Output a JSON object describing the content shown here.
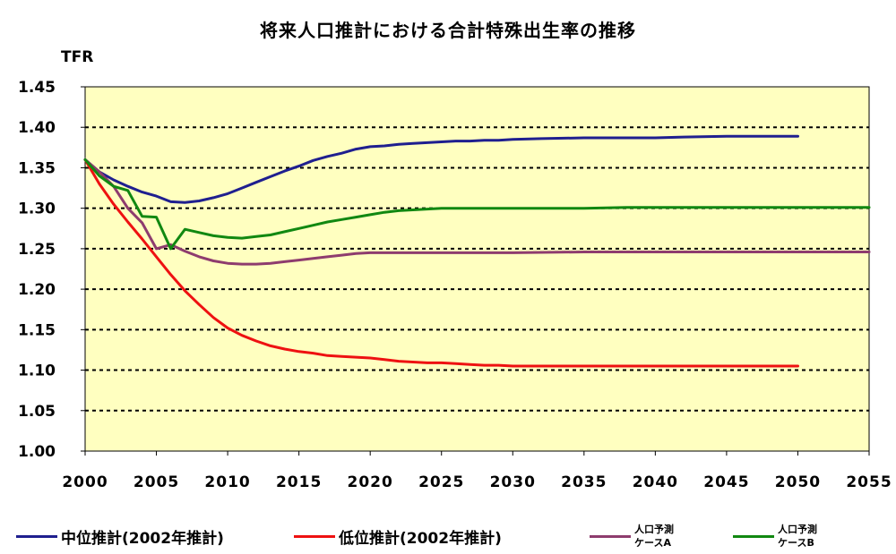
{
  "chart_data": {
    "type": "line",
    "title": "将来人口推計における合計特殊出生率の推移",
    "ylabel": "TFR",
    "xlabel": "",
    "xlim": [
      2000,
      2055
    ],
    "ylim": [
      1.0,
      1.45
    ],
    "x_ticks": [
      "2000",
      "2005",
      "2010",
      "2015",
      "2020",
      "2025",
      "2030",
      "2035",
      "2040",
      "2045",
      "2050",
      "2055"
    ],
    "y_ticks": [
      "1.00",
      "1.05",
      "1.10",
      "1.15",
      "1.20",
      "1.25",
      "1.30",
      "1.35",
      "1.40",
      "1.45"
    ],
    "grid": "horizontal dashed",
    "legend_position": "bottom",
    "plot_background": "#FFFFC0",
    "series": [
      {
        "name": "中位推計(2002年推計)",
        "color": "#1F1F8F",
        "points": [
          [
            2000,
            1.36
          ],
          [
            2001,
            1.345
          ],
          [
            2002,
            1.335
          ],
          [
            2003,
            1.327
          ],
          [
            2004,
            1.32
          ],
          [
            2005,
            1.315
          ],
          [
            2006,
            1.308
          ],
          [
            2007,
            1.307
          ],
          [
            2008,
            1.309
          ],
          [
            2009,
            1.313
          ],
          [
            2010,
            1.318
          ],
          [
            2011,
            1.325
          ],
          [
            2012,
            1.332
          ],
          [
            2013,
            1.339
          ],
          [
            2014,
            1.346
          ],
          [
            2015,
            1.352
          ],
          [
            2016,
            1.359
          ],
          [
            2017,
            1.364
          ],
          [
            2018,
            1.368
          ],
          [
            2019,
            1.373
          ],
          [
            2020,
            1.376
          ],
          [
            2021,
            1.377
          ],
          [
            2022,
            1.379
          ],
          [
            2023,
            1.38
          ],
          [
            2024,
            1.381
          ],
          [
            2025,
            1.382
          ],
          [
            2026,
            1.383
          ],
          [
            2027,
            1.383
          ],
          [
            2028,
            1.384
          ],
          [
            2029,
            1.384
          ],
          [
            2030,
            1.385
          ],
          [
            2032,
            1.386
          ],
          [
            2035,
            1.387
          ],
          [
            2040,
            1.387
          ],
          [
            2042,
            1.388
          ],
          [
            2045,
            1.389
          ],
          [
            2050,
            1.389
          ]
        ]
      },
      {
        "name": "低位推計(2002年推計)",
        "color": "#EE1111",
        "points": [
          [
            2000,
            1.36
          ],
          [
            2001,
            1.33
          ],
          [
            2002,
            1.305
          ],
          [
            2003,
            1.283
          ],
          [
            2004,
            1.262
          ],
          [
            2005,
            1.24
          ],
          [
            2006,
            1.218
          ],
          [
            2007,
            1.198
          ],
          [
            2008,
            1.181
          ],
          [
            2009,
            1.165
          ],
          [
            2010,
            1.152
          ],
          [
            2011,
            1.143
          ],
          [
            2012,
            1.136
          ],
          [
            2013,
            1.13
          ],
          [
            2014,
            1.126
          ],
          [
            2015,
            1.123
          ],
          [
            2016,
            1.121
          ],
          [
            2017,
            1.118
          ],
          [
            2018,
            1.117
          ],
          [
            2019,
            1.116
          ],
          [
            2020,
            1.115
          ],
          [
            2021,
            1.113
          ],
          [
            2022,
            1.111
          ],
          [
            2023,
            1.11
          ],
          [
            2024,
            1.109
          ],
          [
            2025,
            1.109
          ],
          [
            2026,
            1.108
          ],
          [
            2027,
            1.107
          ],
          [
            2028,
            1.106
          ],
          [
            2029,
            1.106
          ],
          [
            2030,
            1.105
          ],
          [
            2035,
            1.105
          ],
          [
            2040,
            1.105
          ],
          [
            2045,
            1.105
          ],
          [
            2050,
            1.105
          ]
        ]
      },
      {
        "name": "人口予測\nケースA",
        "color": "#8E3C6E",
        "points": [
          [
            2000,
            1.36
          ],
          [
            2001,
            1.345
          ],
          [
            2002,
            1.327
          ],
          [
            2003,
            1.3
          ],
          [
            2004,
            1.282
          ],
          [
            2005,
            1.25
          ],
          [
            2006,
            1.255
          ],
          [
            2007,
            1.247
          ],
          [
            2008,
            1.24
          ],
          [
            2009,
            1.235
          ],
          [
            2010,
            1.232
          ],
          [
            2011,
            1.231
          ],
          [
            2012,
            1.231
          ],
          [
            2013,
            1.232
          ],
          [
            2014,
            1.234
          ],
          [
            2015,
            1.236
          ],
          [
            2016,
            1.238
          ],
          [
            2017,
            1.24
          ],
          [
            2018,
            1.242
          ],
          [
            2019,
            1.244
          ],
          [
            2020,
            1.245
          ],
          [
            2022,
            1.245
          ],
          [
            2025,
            1.245
          ],
          [
            2030,
            1.245
          ],
          [
            2035,
            1.246
          ],
          [
            2040,
            1.246
          ],
          [
            2045,
            1.246
          ],
          [
            2050,
            1.246
          ],
          [
            2055,
            1.246
          ]
        ]
      },
      {
        "name": "人口予測\nケースB",
        "color": "#118811",
        "points": [
          [
            2000,
            1.36
          ],
          [
            2001,
            1.34
          ],
          [
            2002,
            1.327
          ],
          [
            2003,
            1.322
          ],
          [
            2004,
            1.29
          ],
          [
            2005,
            1.289
          ],
          [
            2006,
            1.25
          ],
          [
            2007,
            1.274
          ],
          [
            2008,
            1.27
          ],
          [
            2009,
            1.266
          ],
          [
            2010,
            1.264
          ],
          [
            2011,
            1.263
          ],
          [
            2012,
            1.265
          ],
          [
            2013,
            1.267
          ],
          [
            2014,
            1.271
          ],
          [
            2015,
            1.275
          ],
          [
            2016,
            1.279
          ],
          [
            2017,
            1.283
          ],
          [
            2018,
            1.286
          ],
          [
            2019,
            1.289
          ],
          [
            2020,
            1.292
          ],
          [
            2021,
            1.295
          ],
          [
            2022,
            1.297
          ],
          [
            2023,
            1.298
          ],
          [
            2024,
            1.299
          ],
          [
            2025,
            1.3
          ],
          [
            2030,
            1.3
          ],
          [
            2035,
            1.3
          ],
          [
            2038,
            1.301
          ],
          [
            2040,
            1.301
          ],
          [
            2045,
            1.301
          ],
          [
            2050,
            1.301
          ],
          [
            2055,
            1.301
          ]
        ]
      }
    ]
  }
}
